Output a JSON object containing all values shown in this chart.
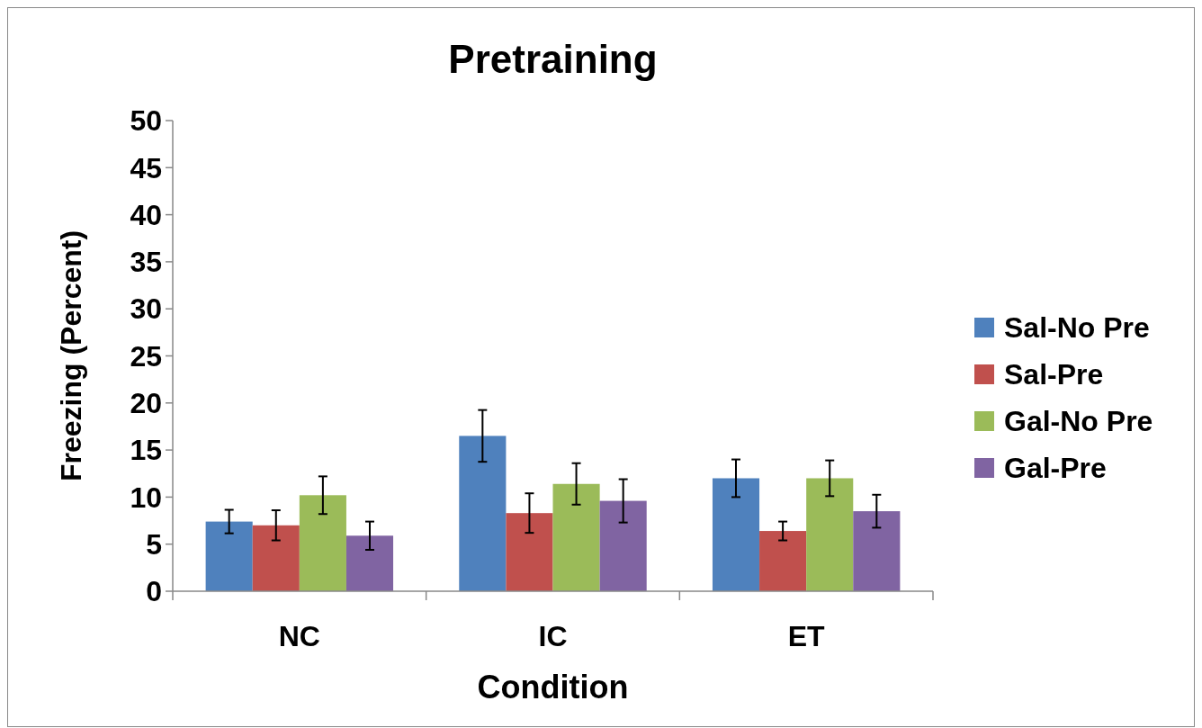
{
  "chart_data": {
    "type": "bar",
    "title": "Pretraining",
    "xlabel": "Condition",
    "ylabel": "Freezing (Percent)",
    "categories": [
      "NC",
      "IC",
      "ET"
    ],
    "series": [
      {
        "name": "Sal-No Pre",
        "color": "#4f81bd",
        "values": [
          7.4,
          16.5,
          12.0
        ],
        "errors": [
          1.25,
          2.75,
          2.0
        ]
      },
      {
        "name": "Sal-Pre",
        "color": "#c0504d",
        "values": [
          7.0,
          8.3,
          6.4
        ],
        "errors": [
          1.6,
          2.1,
          1.0
        ]
      },
      {
        "name": "Gal-No Pre",
        "color": "#9bbb59",
        "values": [
          10.2,
          11.4,
          12.0
        ],
        "errors": [
          2.0,
          2.2,
          1.9
        ]
      },
      {
        "name": "Gal-Pre",
        "color": "#8064a2",
        "values": [
          5.9,
          9.6,
          8.5
        ],
        "errors": [
          1.5,
          2.3,
          1.75
        ]
      }
    ],
    "ylim": [
      0,
      50
    ],
    "yticks": [
      0,
      5,
      10,
      15,
      20,
      25,
      30,
      35,
      40,
      45,
      50
    ],
    "grid": false,
    "legend": "right"
  }
}
